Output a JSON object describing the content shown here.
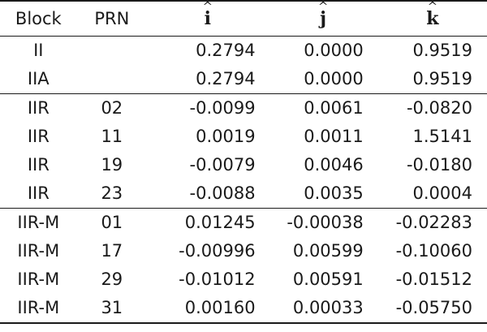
{
  "header": {
    "block": "Block",
    "prn": "PRN",
    "i": "i",
    "j": "j",
    "k": "k",
    "hat": "^"
  },
  "rows": [
    {
      "block": "II",
      "prn": "",
      "i": "0.2794",
      "j": "0.0000",
      "k": "0.9519"
    },
    {
      "block": "IIA",
      "prn": "",
      "i": "0.2794",
      "j": "0.0000",
      "k": "0.9519"
    },
    {
      "block": "IIR",
      "prn": "02",
      "i": "-0.0099",
      "j": "0.0061",
      "k": "-0.0820"
    },
    {
      "block": "IIR",
      "prn": "11",
      "i": "0.0019",
      "j": "0.0011",
      "k": "1.5141"
    },
    {
      "block": "IIR",
      "prn": "19",
      "i": "-0.0079",
      "j": "0.0046",
      "k": "-0.0180"
    },
    {
      "block": "IIR",
      "prn": "23",
      "i": "-0.0088",
      "j": "0.0035",
      "k": "0.0004"
    },
    {
      "block": "IIR-M",
      "prn": "01",
      "i": "0.01245",
      "j": "-0.00038",
      "k": "-0.02283"
    },
    {
      "block": "IIR-M",
      "prn": "17",
      "i": "-0.00996",
      "j": "0.00599",
      "k": "-0.10060"
    },
    {
      "block": "IIR-M",
      "prn": "29",
      "i": "-0.01012",
      "j": "0.00591",
      "k": "-0.01512"
    },
    {
      "block": "IIR-M",
      "prn": "31",
      "i": "0.00160",
      "j": "0.00033",
      "k": "-0.05750"
    }
  ]
}
